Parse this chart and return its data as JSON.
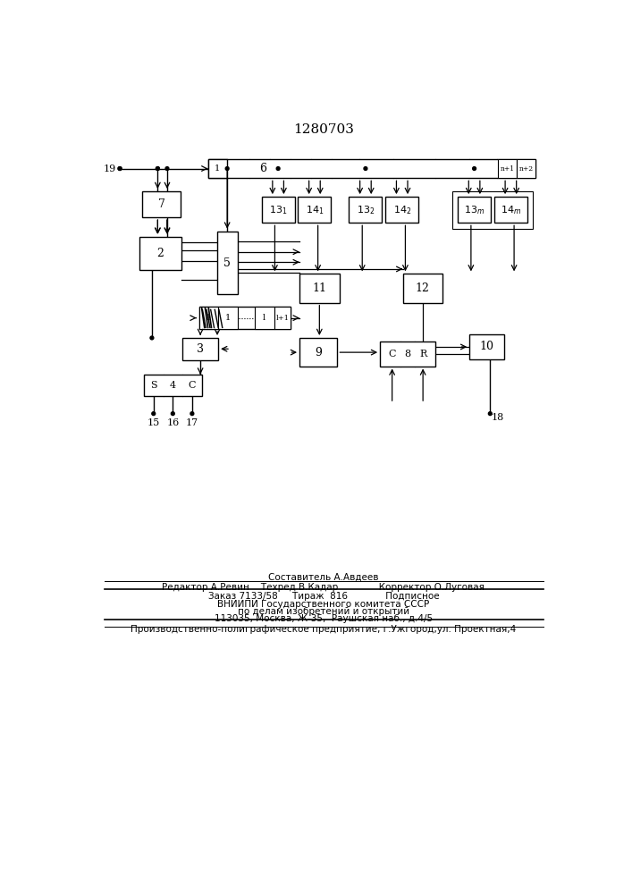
{
  "title": "1280703",
  "bg_color": "#ffffff",
  "line_color": "#000000",
  "footer": {
    "line1": "Составитель А.Авдеев",
    "line2": "Редактор А.Ревин    Техред В.Кадар              Корректор О.Луговая",
    "line3": "Заказ 7133/58     Тираж  816             Подписное",
    "line4": "ВНИИПИ Государственного комитета СССР",
    "line5": "по делам изобретений и открытий",
    "line6": "113035, Москва, Ж-35,  Раушская наб., д.4/5",
    "line7": "Производственно-полиграфическое предприятие, г.Ужгород,ул. Проектная,4"
  }
}
